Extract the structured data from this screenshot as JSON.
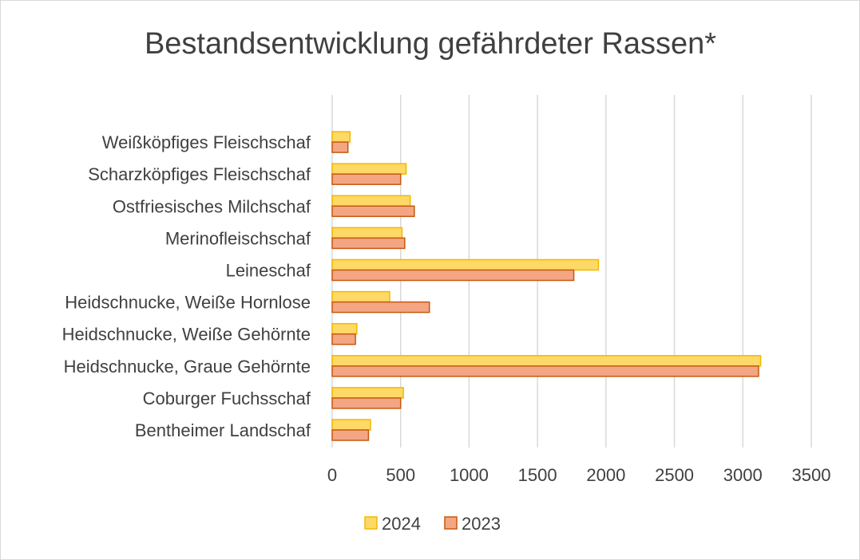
{
  "chart_data": {
    "type": "bar",
    "orientation": "horizontal",
    "title": "Bestandsentwicklung gefährdeter Rassen*",
    "categories": [
      "Bentheimer Landschaf",
      "Coburger Fuchsschaf",
      "Heidschnucke, Graue Gehörnte",
      "Heidschnucke, Weiße Gehörnte",
      "Heidschnucke, Weiße Hornlose",
      "Leineschaf",
      "Merinofleischschaf",
      "Ostfriesisches Milchschaf",
      "Scharzköpfiges Fleischschaf",
      "Weißköpfiges Fleischschaf"
    ],
    "series": [
      {
        "name": "2024",
        "color": "#FFD966",
        "stroke": "#F2B800",
        "values": [
          280,
          520,
          3130,
          180,
          420,
          1945,
          510,
          570,
          540,
          130
        ]
      },
      {
        "name": "2023",
        "color": "#F4A582",
        "stroke": "#C65911",
        "values": [
          265,
          500,
          3115,
          170,
          710,
          1765,
          530,
          600,
          500,
          115
        ]
      }
    ],
    "xlim": [
      0,
      3500
    ],
    "xticks": [
      0,
      500,
      1000,
      1500,
      2000,
      2500,
      3000,
      3500
    ],
    "grid": true,
    "legend_position": "bottom"
  }
}
